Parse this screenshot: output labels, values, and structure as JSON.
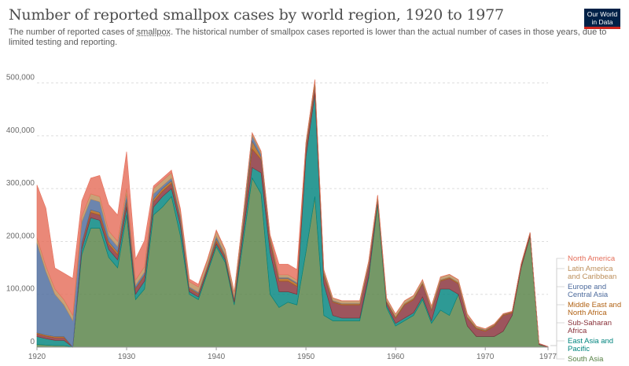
{
  "header": {
    "title": "Number of reported smallpox cases by world region, 1920 to 1977",
    "subtitle_before": "The number of reported cases of ",
    "subtitle_link": "smallpox",
    "subtitle_after": ". The historical number of smallpox cases reported is lower than the actual number of cases in those years, due to limited testing and reporting.",
    "logo_line1": "Our World",
    "logo_line2": "in Data"
  },
  "chart_data": {
    "type": "area",
    "stacked": true,
    "x": [
      1920,
      1921,
      1922,
      1923,
      1924,
      1925,
      1926,
      1927,
      1928,
      1929,
      1930,
      1931,
      1932,
      1933,
      1934,
      1935,
      1936,
      1937,
      1938,
      1939,
      1940,
      1941,
      1942,
      1943,
      1944,
      1945,
      1946,
      1947,
      1948,
      1949,
      1950,
      1951,
      1952,
      1953,
      1954,
      1955,
      1956,
      1957,
      1958,
      1959,
      1960,
      1961,
      1962,
      1963,
      1964,
      1965,
      1966,
      1967,
      1968,
      1969,
      1970,
      1971,
      1972,
      1973,
      1974,
      1975,
      1976,
      1977
    ],
    "xlim": [
      1920,
      1977
    ],
    "ylim": [
      0,
      550000
    ],
    "x_ticks": [
      1920,
      1930,
      1940,
      1950,
      1960,
      1970,
      1977
    ],
    "y_ticks": [
      0,
      100000,
      200000,
      300000,
      400000,
      500000
    ],
    "y_tick_labels": [
      "0",
      "100,000",
      "200,000",
      "300,000",
      "400,000",
      "500,000"
    ],
    "grid": "horizontal dashed",
    "legend_position": "right, at series ends",
    "series": [
      {
        "name": "South Asia",
        "color": "#578145",
        "values": [
          5000,
          4000,
          3000,
          3000,
          0,
          175000,
          225000,
          225000,
          170000,
          150000,
          250000,
          90000,
          110000,
          250000,
          265000,
          285000,
          210000,
          100000,
          90000,
          140000,
          190000,
          160000,
          80000,
          200000,
          320000,
          290000,
          100000,
          75000,
          85000,
          80000,
          180000,
          285000,
          60000,
          50000,
          50000,
          50000,
          50000,
          130000,
          270000,
          75000,
          40000,
          50000,
          60000,
          90000,
          45000,
          70000,
          60000,
          100000,
          40000,
          20000,
          20000,
          20000,
          30000,
          60000,
          150000,
          210000,
          5000,
          0
        ]
      },
      {
        "name": "East Asia and Pacific",
        "color": "#00847e",
        "values": [
          15000,
          12000,
          10000,
          10000,
          0,
          10000,
          20000,
          15000,
          15000,
          15000,
          15000,
          10000,
          15000,
          15000,
          20000,
          15000,
          20000,
          5000,
          5000,
          5000,
          5000,
          5000,
          5000,
          15000,
          20000,
          40000,
          80000,
          30000,
          20000,
          20000,
          180000,
          195000,
          60000,
          10000,
          5000,
          5000,
          5000,
          5000,
          5000,
          5000,
          5000,
          5000,
          5000,
          5000,
          5000,
          40000,
          50000,
          0,
          0,
          0,
          0,
          0,
          0,
          0,
          0,
          0,
          0,
          0
        ]
      },
      {
        "name": "Sub-Saharan Africa",
        "color": "#883039",
        "values": [
          5000,
          5000,
          5000,
          5000,
          0,
          10000,
          10000,
          10000,
          10000,
          10000,
          10000,
          10000,
          10000,
          10000,
          10000,
          10000,
          10000,
          5000,
          5000,
          5000,
          5000,
          5000,
          5000,
          15000,
          35000,
          25000,
          20000,
          20000,
          20000,
          15000,
          15000,
          15000,
          15000,
          25000,
          25000,
          25000,
          25000,
          20000,
          5000,
          5000,
          10000,
          25000,
          25000,
          25000,
          20000,
          15000,
          20000,
          20000,
          15000,
          15000,
          10000,
          20000,
          30000,
          5000,
          5000,
          5000,
          2000,
          1000
        ]
      },
      {
        "name": "Middle East and North Africa",
        "color": "#b16214",
        "values": [
          2000,
          2000,
          2000,
          2000,
          0,
          2000,
          5000,
          5000,
          5000,
          5000,
          5000,
          2000,
          2000,
          5000,
          5000,
          5000,
          2000,
          2000,
          2000,
          2000,
          5000,
          2000,
          2000,
          5000,
          15000,
          5000,
          5000,
          5000,
          5000,
          5000,
          5000,
          5000,
          5000,
          2000,
          2000,
          2000,
          2000,
          2000,
          2000,
          2000,
          2000,
          2000,
          2000,
          2000,
          2000,
          2000,
          2000,
          2000,
          2000,
          2000,
          2000,
          2000,
          2000,
          2000,
          2000,
          2000,
          0,
          0
        ]
      },
      {
        "name": "Europe and Central Asia",
        "color": "#4c6a9c",
        "values": [
          170000,
          120000,
          80000,
          60000,
          50000,
          40000,
          20000,
          20000,
          10000,
          10000,
          10000,
          5000,
          5000,
          10000,
          5000,
          5000,
          5000,
          2000,
          2000,
          2000,
          5000,
          2000,
          2000,
          5000,
          10000,
          5000,
          2000,
          2000,
          2000,
          2000,
          2000,
          1000,
          1000,
          1000,
          500,
          500,
          500,
          500,
          500,
          500,
          500,
          500,
          500,
          500,
          500,
          500,
          500,
          500,
          500,
          500,
          500,
          500,
          500,
          500,
          500,
          0,
          0,
          0
        ]
      },
      {
        "name": "Latin America and Caribbean",
        "color": "#bc8e5a",
        "values": [
          10000,
          10000,
          10000,
          10000,
          10000,
          10000,
          10000,
          10000,
          10000,
          10000,
          10000,
          10000,
          10000,
          10000,
          10000,
          10000,
          10000,
          10000,
          10000,
          10000,
          10000,
          10000,
          10000,
          10000,
          5000,
          5000,
          5000,
          5000,
          5000,
          5000,
          5000,
          5000,
          5000,
          5000,
          5000,
          5000,
          5000,
          5000,
          5000,
          5000,
          5000,
          5000,
          5000,
          5000,
          5000,
          5000,
          5000,
          5000,
          5000,
          2000,
          2000,
          1000,
          500,
          0,
          0,
          0,
          0,
          0
        ]
      },
      {
        "name": "North America",
        "color": "#e56e5a",
        "values": [
          100000,
          110000,
          40000,
          50000,
          70000,
          30000,
          30000,
          40000,
          50000,
          50000,
          70000,
          40000,
          50000,
          5000,
          5000,
          5000,
          5000,
          5000,
          5000,
          2000,
          2000,
          1000,
          1000,
          1000,
          1000,
          1000,
          1000,
          20000,
          20000,
          20000,
          500,
          500,
          500,
          500,
          500,
          500,
          500,
          500,
          500,
          500,
          500,
          500,
          500,
          500,
          500,
          500,
          500,
          500,
          500,
          500,
          500,
          500,
          500,
          500,
          500,
          0,
          0,
          0
        ]
      }
    ]
  }
}
